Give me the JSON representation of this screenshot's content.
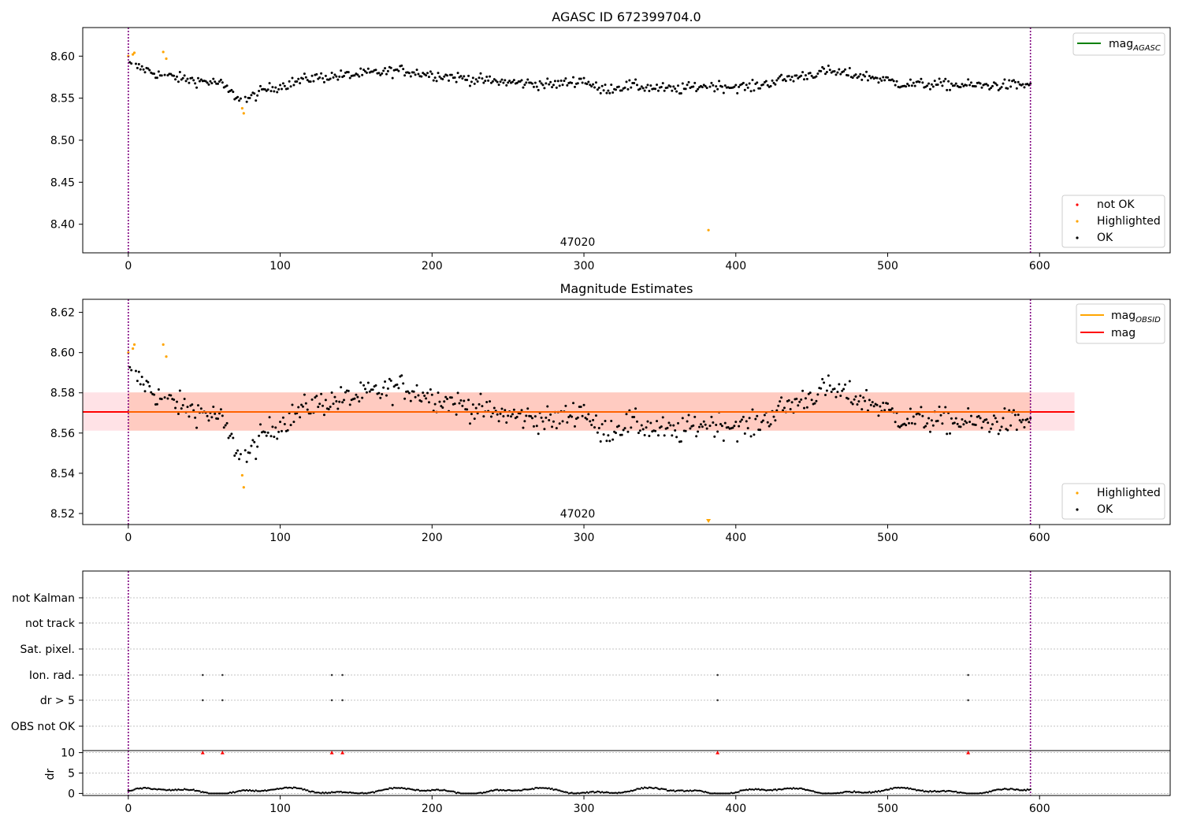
{
  "chart_data": [
    {
      "type": "scatter",
      "title": "AGASC ID 672399704.0",
      "xlim": [
        -30,
        686
      ],
      "ylim": [
        8.366,
        8.634
      ],
      "xticks": [
        0,
        100,
        200,
        300,
        400,
        500,
        600
      ],
      "yticks": [
        8.4,
        8.45,
        8.5,
        8.55,
        8.6
      ],
      "ytick_labels": [
        "8.40",
        "8.45",
        "8.50",
        "8.55",
        "8.60"
      ],
      "obsid_label": "47020",
      "obsid_label_x": 296,
      "vlines": [
        0,
        594
      ],
      "line_legend": [
        {
          "label": "mag",
          "sub": "AGASC",
          "color": "#008000"
        }
      ],
      "marker_legend": [
        {
          "label": "not OK",
          "color": "#ff0000"
        },
        {
          "label": "Highlighted",
          "color": "#ffa500"
        },
        {
          "label": "OK",
          "color": "#000000"
        }
      ],
      "series": [
        {
          "name": "Highlighted",
          "color": "#ffa500",
          "points": [
            [
              0,
              8.6
            ],
            [
              3,
              8.602
            ],
            [
              4,
              8.604
            ],
            [
              23,
              8.605
            ],
            [
              25,
              8.597
            ],
            [
              75,
              8.538
            ],
            [
              76,
              8.532
            ],
            [
              382,
              8.393
            ]
          ]
        }
      ],
      "ok_series": {
        "name": "OK",
        "color": "#000000",
        "x_range": [
          0,
          594
        ]
      }
    },
    {
      "type": "scatter",
      "title": "Magnitude Estimates",
      "xlim": [
        -30,
        686
      ],
      "ylim": [
        8.5145,
        8.6265
      ],
      "xticks": [
        0,
        100,
        200,
        300,
        400,
        500,
        600
      ],
      "yticks": [
        8.52,
        8.54,
        8.56,
        8.58,
        8.6,
        8.62
      ],
      "ytick_labels": [
        "8.52",
        "8.54",
        "8.56",
        "8.58",
        "8.60",
        "8.62"
      ],
      "obsid_label": "47020",
      "obsid_label_x": 296,
      "vlines": [
        0,
        594
      ],
      "mean_mag": 8.5705,
      "band_outer": [
        8.5612,
        8.5802,
        -30,
        623
      ],
      "band_inner": [
        8.5612,
        8.5802,
        0,
        594
      ],
      "line_legend": [
        {
          "label": "mag",
          "sub": "OBSID",
          "color": "#ffa500"
        },
        {
          "label": "mag",
          "sub": "",
          "color": "#ff0000"
        }
      ],
      "marker_legend": [
        {
          "label": "Highlighted",
          "color": "#ffa500"
        },
        {
          "label": "OK",
          "color": "#000000"
        }
      ],
      "series": [
        {
          "name": "Highlighted",
          "color": "#ffa500",
          "points": [
            [
              0,
              8.6
            ],
            [
              3,
              8.602
            ],
            [
              4,
              8.604
            ],
            [
              23,
              8.604
            ],
            [
              25,
              8.598
            ],
            [
              75,
              8.539
            ],
            [
              76,
              8.533
            ]
          ]
        }
      ],
      "ok_series": {
        "name": "OK",
        "color": "#000000",
        "x_range": [
          0,
          594
        ]
      },
      "offscale_marker": {
        "x": 382,
        "color": "#ffa500"
      }
    },
    {
      "type": "scatter",
      "xlim": [
        -30,
        686
      ],
      "xticks": [
        0,
        100,
        200,
        300,
        400,
        500,
        600
      ],
      "vlines": [
        0,
        594
      ],
      "flag_rows": [
        "not Kalman",
        "not track",
        "Sat. pixel.",
        "Ion. rad.",
        "dr > 5",
        "OBS not OK"
      ],
      "flag_points": {
        "Ion. rad.": [
          49,
          62,
          134,
          141,
          388,
          553
        ],
        "dr > 5": [
          49,
          62,
          134,
          141,
          388,
          553
        ]
      },
      "dr_panel": {
        "ylabel": "dr",
        "yticks": [
          0,
          5,
          10
        ],
        "ytick_labels": [
          "0",
          "5",
          "10"
        ],
        "ylim": [
          -0.5,
          10.5
        ],
        "clipped_points": [
          49,
          62,
          134,
          141,
          388,
          553
        ],
        "clipped_color": "#ff0000"
      }
    }
  ]
}
